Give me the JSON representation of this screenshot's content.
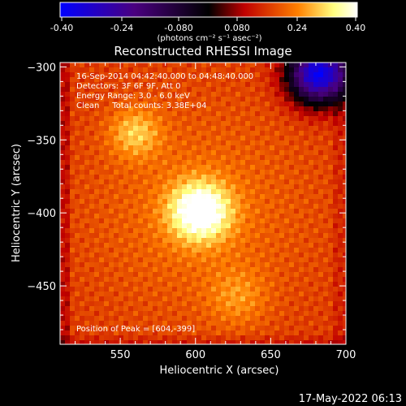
{
  "colorbar": {
    "ticks": [
      "-0.40",
      "-0.24",
      "-0.080",
      "0.080",
      "0.24",
      "0.40"
    ],
    "unit_label": "(photons cm⁻² s⁻¹ asec⁻²)"
  },
  "info": {
    "time_range": "16-Sep-2014 04:42:40.000 to 04:48:40.000",
    "detectors": "Detectors: 3F 6F 9F, Att 0",
    "energy": "Energy Range: 3.0 - 6.0 keV",
    "clean": "Clean     Total counts: 3.38E+04",
    "peak": "Position of Peak = [604,-399]"
  },
  "timestamp": "17-May-2022 06:13",
  "chart_data": {
    "type": "heatmap",
    "title": "Reconstructed RHESSI Image",
    "xlabel": "Heliocentric X (arcsec)",
    "ylabel": "Heliocentric Y (arcsec)",
    "xlim": [
      510,
      700
    ],
    "ylim": [
      -490,
      -297
    ],
    "xticks": [
      550,
      600,
      650,
      700
    ],
    "yticks": [
      -300,
      -350,
      -400,
      -450
    ],
    "colorscale": {
      "range": [
        -0.4,
        0.4
      ],
      "colors": [
        "#0000ff",
        "#4a0080",
        "#000000",
        "#c00000",
        "#ff8000",
        "#ffff80",
        "#ffffff"
      ]
    },
    "sources": [
      {
        "x": 603,
        "y": -399,
        "value": 0.4
      },
      {
        "x": 560,
        "y": -345,
        "value": 0.28
      },
      {
        "x": 628,
        "y": -458,
        "value": 0.22
      },
      {
        "x": 682,
        "y": -305,
        "value": -0.3
      }
    ],
    "peak": [
      604,
      -399
    ]
  }
}
